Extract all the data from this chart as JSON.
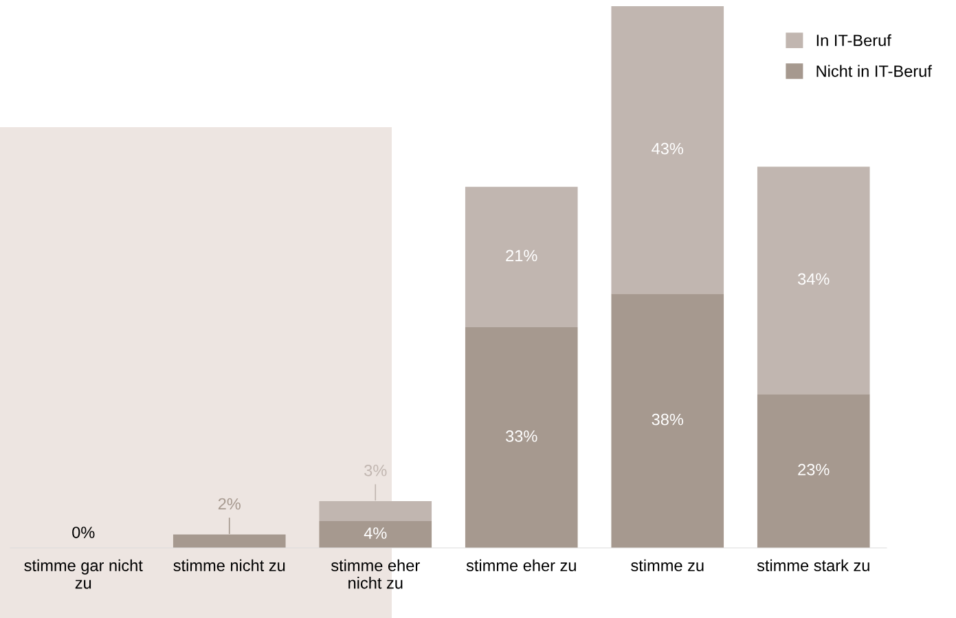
{
  "chart_data": {
    "type": "bar",
    "stacked": true,
    "categories": [
      "stimme gar nicht zu",
      "stimme nicht zu",
      "stimme eher nicht zu",
      "stimme eher zu",
      "stimme zu",
      "stimme stark zu"
    ],
    "series": [
      {
        "name": "Nicht in IT-Beruf",
        "color": "#a6998f",
        "values": [
          0,
          2,
          4,
          33,
          38,
          23
        ],
        "value_labels": [
          "0%",
          "2%",
          "4%",
          "33%",
          "38%",
          "23%"
        ]
      },
      {
        "name": "In IT-Beruf",
        "color": "#c1b6b0",
        "values": [
          0,
          0,
          3,
          21,
          43,
          34
        ],
        "value_labels": [
          null,
          null,
          "3%",
          "21%",
          "43%",
          "34%"
        ]
      }
    ],
    "ylim": [
      0,
      81
    ],
    "tick_labels": "x",
    "grid": false,
    "legend": "top right"
  }
}
